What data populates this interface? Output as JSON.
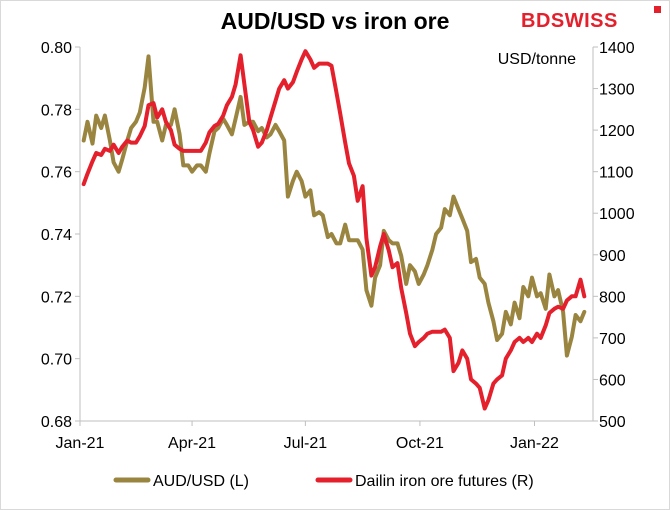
{
  "title": "AUD/USD  vs iron ore",
  "logo": {
    "bd": "BD",
    "swiss": "SWISS"
  },
  "chart_data": {
    "type": "line",
    "title": "AUD/USD  vs iron ore",
    "x_ticks": [
      "Jan-21",
      "Apr-21",
      "Jul-21",
      "Oct-21",
      "Jan-22"
    ],
    "y_left": {
      "ticks": [
        "0.68",
        "0.70",
        "0.72",
        "0.74",
        "0.76",
        "0.78",
        "0.80"
      ],
      "ylim": [
        0.68,
        0.8
      ]
    },
    "y_right": {
      "label": "USD/tonne",
      "ticks": [
        "500",
        "600",
        "700",
        "800",
        "900",
        "1000",
        "1100",
        "1200",
        "1300",
        "1400"
      ],
      "ylim": [
        500,
        1400
      ]
    },
    "legend_position": "bottom",
    "series": [
      {
        "name": "AUD/USD (L)",
        "axis": "left",
        "color": "#9a8540",
        "points": [
          [
            "2021-01-04",
            0.77
          ],
          [
            "2021-01-07",
            0.776
          ],
          [
            "2021-01-11",
            0.769
          ],
          [
            "2021-01-14",
            0.778
          ],
          [
            "2021-01-18",
            0.774
          ],
          [
            "2021-01-21",
            0.778
          ],
          [
            "2021-01-25",
            0.77
          ],
          [
            "2021-01-28",
            0.763
          ],
          [
            "2021-02-01",
            0.76
          ],
          [
            "2021-02-04",
            0.764
          ],
          [
            "2021-02-08",
            0.77
          ],
          [
            "2021-02-11",
            0.774
          ],
          [
            "2021-02-15",
            0.776
          ],
          [
            "2021-02-18",
            0.779
          ],
          [
            "2021-02-22",
            0.787
          ],
          [
            "2021-02-25",
            0.797
          ],
          [
            "2021-03-01",
            0.776
          ],
          [
            "2021-03-04",
            0.776
          ],
          [
            "2021-03-08",
            0.77
          ],
          [
            "2021-03-11",
            0.775
          ],
          [
            "2021-03-15",
            0.775
          ],
          [
            "2021-03-18",
            0.78
          ],
          [
            "2021-03-22",
            0.772
          ],
          [
            "2021-03-25",
            0.762
          ],
          [
            "2021-03-29",
            0.762
          ],
          [
            "2021-04-01",
            0.76
          ],
          [
            "2021-04-05",
            0.762
          ],
          [
            "2021-04-08",
            0.762
          ],
          [
            "2021-04-12",
            0.76
          ],
          [
            "2021-04-15",
            0.766
          ],
          [
            "2021-04-19",
            0.773
          ],
          [
            "2021-04-22",
            0.774
          ],
          [
            "2021-04-26",
            0.777
          ],
          [
            "2021-04-29",
            0.775
          ],
          [
            "2021-05-03",
            0.772
          ],
          [
            "2021-05-06",
            0.777
          ],
          [
            "2021-05-10",
            0.784
          ],
          [
            "2021-05-13",
            0.775
          ],
          [
            "2021-05-17",
            0.776
          ],
          [
            "2021-05-20",
            0.776
          ],
          [
            "2021-05-24",
            0.773
          ],
          [
            "2021-05-27",
            0.774
          ],
          [
            "2021-05-31",
            0.771
          ],
          [
            "2021-06-03",
            0.772
          ],
          [
            "2021-06-07",
            0.775
          ],
          [
            "2021-06-10",
            0.773
          ],
          [
            "2021-06-14",
            0.77
          ],
          [
            "2021-06-17",
            0.752
          ],
          [
            "2021-06-21",
            0.757
          ],
          [
            "2021-06-24",
            0.76
          ],
          [
            "2021-06-28",
            0.757
          ],
          [
            "2021-07-01",
            0.752
          ],
          [
            "2021-07-05",
            0.754
          ],
          [
            "2021-07-08",
            0.746
          ],
          [
            "2021-07-12",
            0.747
          ],
          [
            "2021-07-15",
            0.746
          ],
          [
            "2021-07-19",
            0.739
          ],
          [
            "2021-07-22",
            0.74
          ],
          [
            "2021-07-26",
            0.737
          ],
          [
            "2021-07-29",
            0.737
          ],
          [
            "2021-08-02",
            0.743
          ],
          [
            "2021-08-05",
            0.738
          ],
          [
            "2021-08-09",
            0.738
          ],
          [
            "2021-08-12",
            0.738
          ],
          [
            "2021-08-16",
            0.735
          ],
          [
            "2021-08-19",
            0.722
          ],
          [
            "2021-08-23",
            0.717
          ],
          [
            "2021-08-26",
            0.726
          ],
          [
            "2021-08-30",
            0.73
          ],
          [
            "2021-09-02",
            0.741
          ],
          [
            "2021-09-06",
            0.738
          ],
          [
            "2021-09-09",
            0.737
          ],
          [
            "2021-09-13",
            0.737
          ],
          [
            "2021-09-16",
            0.733
          ],
          [
            "2021-09-20",
            0.724
          ],
          [
            "2021-09-23",
            0.73
          ],
          [
            "2021-09-27",
            0.728
          ],
          [
            "2021-09-30",
            0.724
          ],
          [
            "2021-10-04",
            0.727
          ],
          [
            "2021-10-07",
            0.73
          ],
          [
            "2021-10-11",
            0.735
          ],
          [
            "2021-10-14",
            0.74
          ],
          [
            "2021-10-18",
            0.742
          ],
          [
            "2021-10-21",
            0.748
          ],
          [
            "2021-10-25",
            0.746
          ],
          [
            "2021-10-28",
            0.752
          ],
          [
            "2021-11-01",
            0.748
          ],
          [
            "2021-11-04",
            0.745
          ],
          [
            "2021-11-08",
            0.741
          ],
          [
            "2021-11-11",
            0.731
          ],
          [
            "2021-11-15",
            0.732
          ],
          [
            "2021-11-18",
            0.726
          ],
          [
            "2021-11-22",
            0.724
          ],
          [
            "2021-11-25",
            0.718
          ],
          [
            "2021-11-29",
            0.712
          ],
          [
            "2021-12-02",
            0.706
          ],
          [
            "2021-12-06",
            0.708
          ],
          [
            "2021-12-09",
            0.715
          ],
          [
            "2021-12-13",
            0.711
          ],
          [
            "2021-12-16",
            0.718
          ],
          [
            "2021-12-20",
            0.713
          ],
          [
            "2021-12-23",
            0.723
          ],
          [
            "2021-12-27",
            0.72
          ],
          [
            "2021-12-30",
            0.726
          ],
          [
            "2022-01-03",
            0.72
          ],
          [
            "2022-01-06",
            0.721
          ],
          [
            "2022-01-10",
            0.716
          ],
          [
            "2022-01-13",
            0.727
          ],
          [
            "2022-01-17",
            0.72
          ],
          [
            "2022-01-20",
            0.722
          ],
          [
            "2022-01-24",
            0.715
          ],
          [
            "2022-01-27",
            0.701
          ],
          [
            "2022-01-31",
            0.707
          ],
          [
            "2022-02-03",
            0.714
          ],
          [
            "2022-02-07",
            0.712
          ],
          [
            "2022-02-10",
            0.715
          ]
        ]
      },
      {
        "name": "Dailin iron ore futures (R)",
        "axis": "right",
        "color": "#e4202c",
        "points": [
          [
            "2021-01-04",
            1070
          ],
          [
            "2021-01-07",
            1095
          ],
          [
            "2021-01-11",
            1125
          ],
          [
            "2021-01-14",
            1145
          ],
          [
            "2021-01-18",
            1140
          ],
          [
            "2021-01-21",
            1155
          ],
          [
            "2021-01-25",
            1150
          ],
          [
            "2021-01-28",
            1165
          ],
          [
            "2021-02-01",
            1145
          ],
          [
            "2021-02-04",
            1160
          ],
          [
            "2021-02-08",
            1175
          ],
          [
            "2021-02-11",
            1170
          ],
          [
            "2021-02-15",
            1170
          ],
          [
            "2021-02-18",
            1185
          ],
          [
            "2021-02-22",
            1210
          ],
          [
            "2021-02-25",
            1260
          ],
          [
            "2021-03-01",
            1265
          ],
          [
            "2021-03-04",
            1230
          ],
          [
            "2021-03-08",
            1250
          ],
          [
            "2021-03-11",
            1220
          ],
          [
            "2021-03-15",
            1200
          ],
          [
            "2021-03-18",
            1165
          ],
          [
            "2021-03-22",
            1155
          ],
          [
            "2021-03-25",
            1150
          ],
          [
            "2021-03-29",
            1150
          ],
          [
            "2021-04-01",
            1150
          ],
          [
            "2021-04-05",
            1150
          ],
          [
            "2021-04-08",
            1150
          ],
          [
            "2021-04-12",
            1170
          ],
          [
            "2021-04-15",
            1195
          ],
          [
            "2021-04-19",
            1210
          ],
          [
            "2021-04-22",
            1215
          ],
          [
            "2021-04-26",
            1235
          ],
          [
            "2021-04-29",
            1260
          ],
          [
            "2021-05-03",
            1280
          ],
          [
            "2021-05-06",
            1310
          ],
          [
            "2021-05-10",
            1380
          ],
          [
            "2021-05-13",
            1310
          ],
          [
            "2021-05-17",
            1220
          ],
          [
            "2021-05-20",
            1200
          ],
          [
            "2021-05-24",
            1160
          ],
          [
            "2021-05-27",
            1170
          ],
          [
            "2021-05-31",
            1200
          ],
          [
            "2021-06-03",
            1230
          ],
          [
            "2021-06-07",
            1270
          ],
          [
            "2021-06-10",
            1300
          ],
          [
            "2021-06-14",
            1320
          ],
          [
            "2021-06-17",
            1300
          ],
          [
            "2021-06-21",
            1315
          ],
          [
            "2021-06-24",
            1340
          ],
          [
            "2021-06-28",
            1370
          ],
          [
            "2021-07-01",
            1390
          ],
          [
            "2021-07-05",
            1370
          ],
          [
            "2021-07-08",
            1350
          ],
          [
            "2021-07-12",
            1360
          ],
          [
            "2021-07-15",
            1360
          ],
          [
            "2021-07-19",
            1360
          ],
          [
            "2021-07-22",
            1355
          ],
          [
            "2021-07-26",
            1290
          ],
          [
            "2021-07-29",
            1240
          ],
          [
            "2021-08-02",
            1170
          ],
          [
            "2021-08-05",
            1120
          ],
          [
            "2021-08-09",
            1090
          ],
          [
            "2021-08-12",
            1030
          ],
          [
            "2021-08-16",
            1065
          ],
          [
            "2021-08-19",
            940
          ],
          [
            "2021-08-23",
            850
          ],
          [
            "2021-08-26",
            870
          ],
          [
            "2021-08-30",
            920
          ],
          [
            "2021-09-02",
            950
          ],
          [
            "2021-09-06",
            910
          ],
          [
            "2021-09-09",
            870
          ],
          [
            "2021-09-13",
            880
          ],
          [
            "2021-09-16",
            820
          ],
          [
            "2021-09-20",
            760
          ],
          [
            "2021-09-23",
            710
          ],
          [
            "2021-09-27",
            680
          ],
          [
            "2021-09-30",
            690
          ],
          [
            "2021-10-04",
            700
          ],
          [
            "2021-10-07",
            710
          ],
          [
            "2021-10-11",
            715
          ],
          [
            "2021-10-14",
            715
          ],
          [
            "2021-10-18",
            715
          ],
          [
            "2021-10-21",
            720
          ],
          [
            "2021-10-25",
            700
          ],
          [
            "2021-10-28",
            620
          ],
          [
            "2021-11-01",
            640
          ],
          [
            "2021-11-04",
            670
          ],
          [
            "2021-11-08",
            650
          ],
          [
            "2021-11-11",
            600
          ],
          [
            "2021-11-15",
            590
          ],
          [
            "2021-11-18",
            580
          ],
          [
            "2021-11-22",
            530
          ],
          [
            "2021-11-25",
            550
          ],
          [
            "2021-11-29",
            590
          ],
          [
            "2021-12-02",
            600
          ],
          [
            "2021-12-06",
            610
          ],
          [
            "2021-12-09",
            650
          ],
          [
            "2021-12-13",
            670
          ],
          [
            "2021-12-16",
            690
          ],
          [
            "2021-12-20",
            700
          ],
          [
            "2021-12-23",
            690
          ],
          [
            "2021-12-27",
            700
          ],
          [
            "2021-12-30",
            690
          ],
          [
            "2022-01-03",
            710
          ],
          [
            "2022-01-06",
            700
          ],
          [
            "2022-01-10",
            730
          ],
          [
            "2022-01-13",
            760
          ],
          [
            "2022-01-17",
            770
          ],
          [
            "2022-01-20",
            775
          ],
          [
            "2022-01-24",
            770
          ],
          [
            "2022-01-27",
            790
          ],
          [
            "2022-01-31",
            800
          ],
          [
            "2022-02-03",
            800
          ],
          [
            "2022-02-07",
            840
          ],
          [
            "2022-02-10",
            800
          ]
        ]
      }
    ]
  }
}
